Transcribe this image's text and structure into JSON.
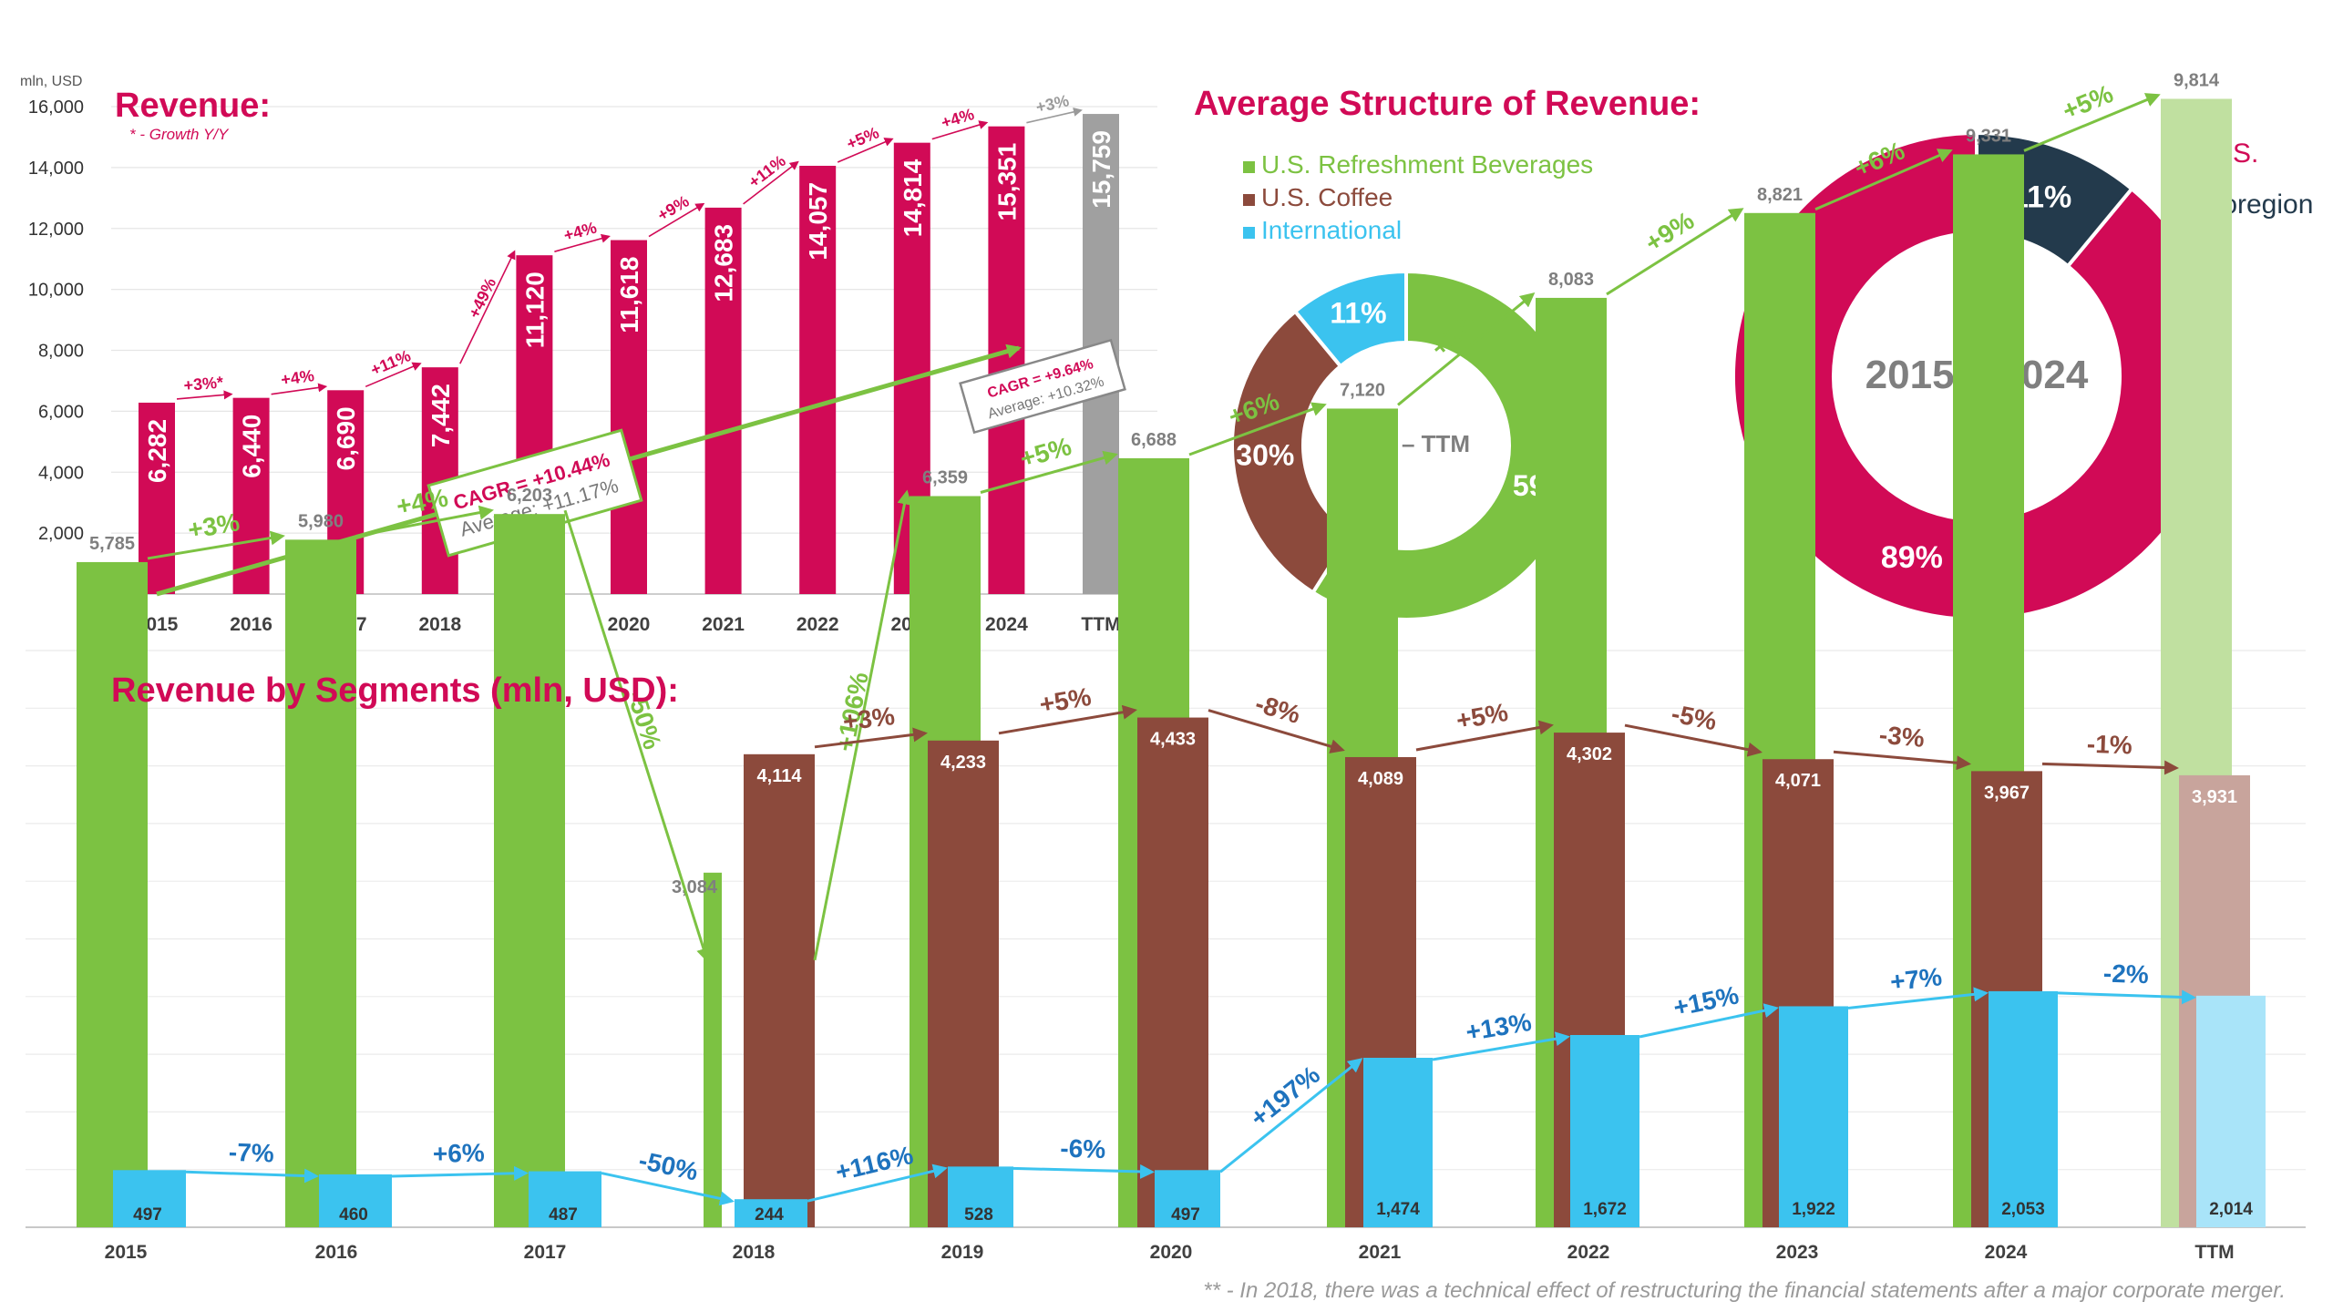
{
  "colors": {
    "crimson": "#D10A56",
    "green": "#7CC242",
    "brown": "#8C4A3C",
    "blue": "#3BC3EF",
    "grey": "#A0A0A0",
    "navy": "#233A4C",
    "ttm_green": "#C0E0A0",
    "ttm_brown": "#C8A49C",
    "ttm_blue": "#A9E4F9",
    "ttm_growth": "#9A9A9A",
    "growth_blue": "#1E73BE"
  },
  "revenue_panel": {
    "title": "Revenue:",
    "subtitle": "* - Growth Y/Y",
    "unit": "mln, USD",
    "cagr_box": {
      "main": "CAGR = +10.44%",
      "sub": "Average: +11.17%"
    },
    "cagr_box_ttm": {
      "main": "CAGR = +9.64%",
      "sub": "Average: +10.32%"
    }
  },
  "structure_panel": {
    "title": "Average Structure of Revenue:",
    "segment_center": "2018 – TTM",
    "region_center": "2015 – 2024"
  },
  "segments_panel": {
    "title": "Revenue by Segments (mln, USD):",
    "footnote": "** - In 2018, there was a technical effect of restructuring the financial statements after a major corporate merger."
  },
  "chart_data": [
    {
      "type": "bar",
      "title": "Revenue:",
      "ylabel": "mln, USD",
      "ylim": [
        0,
        16000
      ],
      "yticks": [
        "-",
        "2,000",
        "4,000",
        "6,000",
        "8,000",
        "10,000",
        "12,000",
        "14,000",
        "16,000"
      ],
      "categories": [
        "2015",
        "2016",
        "2017",
        "2018",
        "2019",
        "2020",
        "2021",
        "2022",
        "2023",
        "2024",
        "TTM"
      ],
      "values": [
        6282,
        6440,
        6690,
        7442,
        11120,
        11618,
        12683,
        14057,
        14814,
        15351,
        15759
      ],
      "labels": [
        "6,282",
        "6,440",
        "6,690",
        "7,442",
        "11,120",
        "11,618",
        "12,683",
        "14,057",
        "14,814",
        "15,351",
        "15,759"
      ],
      "growth": [
        "+3%*",
        "+4%",
        "+11%",
        "+49%",
        "+4%",
        "+9%",
        "+11%",
        "+5%",
        "+4%",
        "+3%"
      ],
      "grid": true
    },
    {
      "type": "pie",
      "title": "Average Structure of Revenue:",
      "center_label": "2018 – TTM",
      "legend_position": "top-left",
      "slices": [
        {
          "name": "U.S. Refreshment Beverages",
          "value": 59,
          "label": "59%"
        },
        {
          "name": "U.S. Coffee",
          "value": 30,
          "label": "30%"
        },
        {
          "name": "International",
          "value": 11,
          "label": "11%"
        }
      ]
    },
    {
      "type": "pie",
      "center_label": "2015 – 2024",
      "legend_position": "top-right",
      "slices": [
        {
          "name": "U.S.",
          "value": 89,
          "label": "89%"
        },
        {
          "name": "Foregion",
          "value": 11,
          "label": "11%"
        }
      ]
    },
    {
      "type": "bar",
      "title": "Revenue by Segments (mln, USD):",
      "categories": [
        "2015",
        "2016",
        "2017",
        "2018",
        "2019",
        "2020",
        "2021",
        "2022",
        "2023",
        "2024",
        "TTM"
      ],
      "grid": true,
      "series": [
        {
          "name": "U.S. Refreshment Beverages",
          "values": [
            5785,
            5980,
            6203,
            3084,
            6359,
            6688,
            7120,
            8083,
            8821,
            9331,
            9814
          ],
          "labels": [
            "5,785",
            "5,980",
            "6,203",
            "3,084",
            "6,359",
            "6,688",
            "7,120",
            "8,083",
            "8,821",
            "9,331",
            "9,814"
          ],
          "growth": [
            "+3%",
            "+4%",
            "-50%",
            "+106%",
            "+5%",
            "+6%",
            "+14%",
            "+9%",
            "+6%",
            "+5%"
          ]
        },
        {
          "name": "U.S. Coffee",
          "values": [
            null,
            null,
            null,
            4114,
            4233,
            4433,
            4089,
            4302,
            4071,
            3967,
            3931
          ],
          "labels": [
            "",
            "",
            "",
            "4,114",
            "4,233",
            "4,433",
            "4,089",
            "4,302",
            "4,071",
            "3,967",
            "3,931"
          ],
          "growth": [
            "",
            "",
            "",
            "+3%",
            "+5%",
            "-8%",
            "+5%",
            "-5%",
            "-3%",
            "-1%"
          ]
        },
        {
          "name": "International",
          "values": [
            497,
            460,
            487,
            244,
            528,
            497,
            1474,
            1672,
            1922,
            2053,
            2014
          ],
          "labels": [
            "497",
            "460",
            "487",
            "244",
            "528",
            "497",
            "1,474",
            "1,672",
            "1,922",
            "2,053",
            "2,014"
          ],
          "growth": [
            "-7%",
            "+6%",
            "-50%",
            "+116%",
            "-6%",
            "+197%",
            "+13%",
            "+15%",
            "+7%",
            "-2%"
          ]
        }
      ]
    }
  ]
}
